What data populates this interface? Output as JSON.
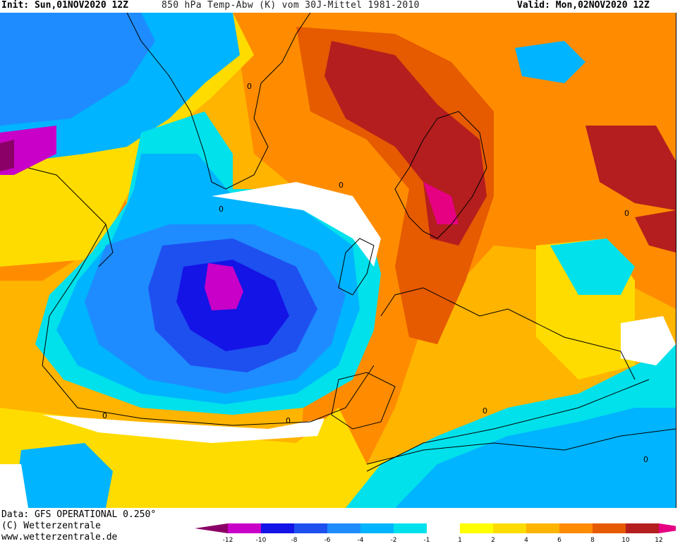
{
  "header": {
    "init": "Init: Sun,01NOV2020 12Z",
    "title": "850 hPa Temp-Abw (K) vom 30J-Mittel 1981-2010",
    "valid": "Valid: Mon,02NOV2020 12Z"
  },
  "footer": {
    "data_source": "Data: GFS OPERATIONAL 0.250°",
    "copyright": "(C) Wetterzentrale",
    "url": "www.wetterzentrale.de"
  },
  "legend": {
    "ticks": [
      "-12",
      "-10",
      "-8",
      "-6",
      "-4",
      "-2",
      "-1",
      "1",
      "2",
      "4",
      "6",
      "8",
      "10",
      "12"
    ],
    "colors": {
      "lt_-12": "#8b0066",
      "-12_-10": "#c800c8",
      "-10_-8": "#1414e6",
      "-8_-6": "#1e50f0",
      "-6_-4": "#1e8cff",
      "-4_-2": "#00b4ff",
      "-2_-1": "#00e1eb",
      "-1_1": "#ffffff",
      "1_2": "#ffff00",
      "2_4": "#ffdc00",
      "4_6": "#ffb400",
      "6_8": "#ff8c00",
      "8_10": "#e65a00",
      "10_12": "#b41e1e",
      "gt_12": "#e60082"
    }
  },
  "map": {
    "contour_labels": [
      "0",
      "0",
      "0",
      "0",
      "0",
      "0",
      "0",
      "0"
    ]
  }
}
